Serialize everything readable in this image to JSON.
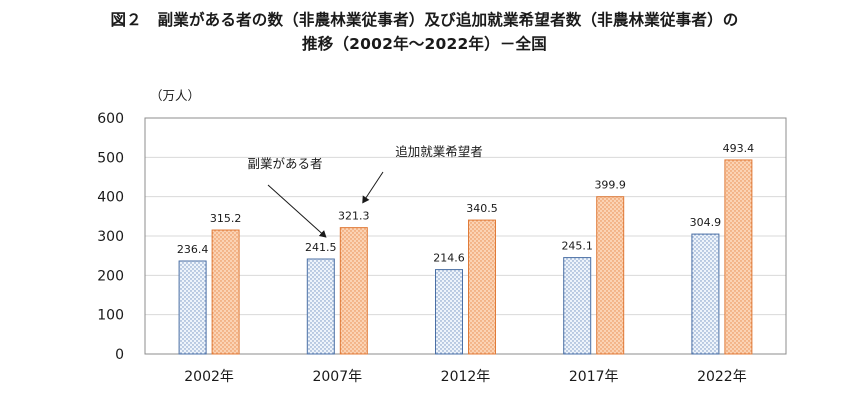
{
  "chart_data": {
    "type": "bar",
    "title_line1": "図２　副業がある者の数（非農林業従事者）及び追加就業希望者数（非農林業従事者）の",
    "title_line2": "推移（2002年～2022年）－全国",
    "unit_label": "（万人）",
    "categories": [
      "2002年",
      "2007年",
      "2012年",
      "2017年",
      "2022年"
    ],
    "series": [
      {
        "name": "副業がある者",
        "values": [
          236.4,
          241.5,
          214.6,
          245.1,
          304.9
        ],
        "labels": [
          "236.4",
          "241.5",
          "214.6",
          "245.1",
          "304.9"
        ],
        "color": "#dce8f5",
        "pattern": "dotted-blue"
      },
      {
        "name": "追加就業希望者",
        "values": [
          315.2,
          321.3,
          340.5,
          399.9,
          493.4
        ],
        "labels": [
          "315.2",
          "321.3",
          "340.5",
          "399.9",
          "493.4"
        ],
        "color": "#f7b88a",
        "pattern": "dotted-orange"
      }
    ],
    "ylim": [
      0,
      600
    ],
    "yticks": [
      0,
      100,
      200,
      300,
      400,
      500,
      600
    ],
    "grid": true,
    "annotations": [
      {
        "text": "副業がある者",
        "series": 0,
        "category": 1
      },
      {
        "text": "追加就業希望者",
        "series": 1,
        "category": 1
      }
    ]
  },
  "colors": {
    "axis": "#8c8c8c",
    "grid": "#d9d9d9",
    "bar_blue_border": "#4a6fa5",
    "bar_orange_border": "#e07b39"
  }
}
